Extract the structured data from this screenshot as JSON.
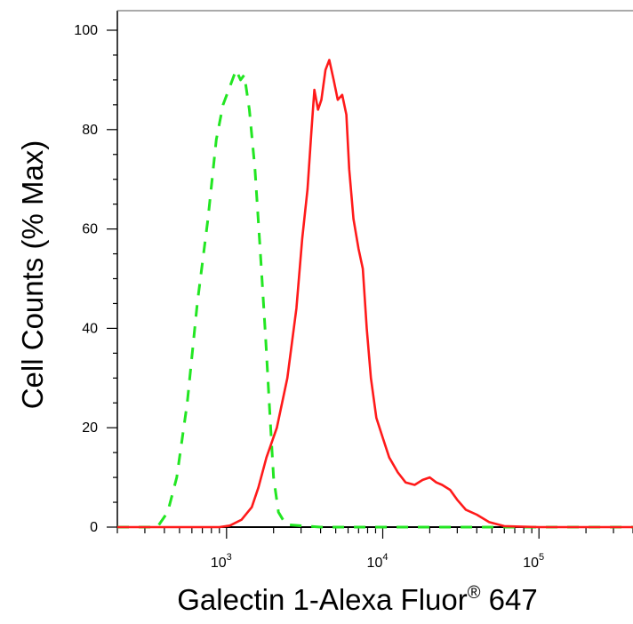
{
  "chart_data": {
    "type": "line",
    "title": "",
    "xlabel": "Galectin 1-Alexa Fluor",
    "xlabel_superscript": "®",
    "xlabel_suffix": " 647",
    "ylabel": "Cell Counts (% Max)",
    "xscale": "log",
    "xlim": [
      200,
      400000
    ],
    "ylim": [
      0,
      100
    ],
    "grid": false,
    "legend": "none",
    "yticks": [
      0,
      20,
      40,
      60,
      80,
      100
    ],
    "xticks_major": [
      {
        "base": "10",
        "exp": "3",
        "value": 1000
      },
      {
        "base": "10",
        "exp": "4",
        "value": 10000
      },
      {
        "base": "10",
        "exp": "5",
        "value": 100000
      }
    ],
    "series": [
      {
        "style": "dashed",
        "color": "#22e622",
        "points": [
          [
            200,
            0
          ],
          [
            360,
            0
          ],
          [
            420,
            3
          ],
          [
            480,
            10
          ],
          [
            560,
            25
          ],
          [
            650,
            45
          ],
          [
            760,
            62
          ],
          [
            860,
            78
          ],
          [
            950,
            85
          ],
          [
            1060,
            89
          ],
          [
            1150,
            92
          ],
          [
            1230,
            90
          ],
          [
            1300,
            91
          ],
          [
            1400,
            84
          ],
          [
            1520,
            72
          ],
          [
            1640,
            56
          ],
          [
            1780,
            38
          ],
          [
            1900,
            22
          ],
          [
            2000,
            10
          ],
          [
            2150,
            3
          ],
          [
            2400,
            0.5
          ],
          [
            4000,
            0
          ],
          [
            400000,
            0
          ]
        ]
      },
      {
        "style": "solid",
        "color": "#ff1a1a",
        "points": [
          [
            200,
            0
          ],
          [
            900,
            0
          ],
          [
            1050,
            0.3
          ],
          [
            1250,
            1.5
          ],
          [
            1450,
            4
          ],
          [
            1600,
            8
          ],
          [
            1800,
            14
          ],
          [
            2100,
            20
          ],
          [
            2450,
            30
          ],
          [
            2800,
            44
          ],
          [
            3050,
            58
          ],
          [
            3300,
            68
          ],
          [
            3500,
            80
          ],
          [
            3650,
            88
          ],
          [
            3850,
            84
          ],
          [
            4050,
            86
          ],
          [
            4300,
            92
          ],
          [
            4550,
            94
          ],
          [
            4850,
            90
          ],
          [
            5150,
            86
          ],
          [
            5500,
            87
          ],
          [
            5850,
            83
          ],
          [
            6100,
            72
          ],
          [
            6500,
            62
          ],
          [
            7000,
            56
          ],
          [
            7450,
            52
          ],
          [
            7900,
            40
          ],
          [
            8400,
            30
          ],
          [
            9100,
            22
          ],
          [
            10000,
            18
          ],
          [
            11000,
            14
          ],
          [
            12500,
            11
          ],
          [
            14000,
            9
          ],
          [
            16000,
            8.5
          ],
          [
            18000,
            9.5
          ],
          [
            20000,
            10
          ],
          [
            22000,
            9
          ],
          [
            24000,
            8.5
          ],
          [
            27000,
            7.5
          ],
          [
            30000,
            5.5
          ],
          [
            34000,
            3.5
          ],
          [
            40000,
            2.5
          ],
          [
            48000,
            1
          ],
          [
            60000,
            0.2
          ],
          [
            100000,
            0
          ],
          [
            400000,
            0
          ]
        ]
      }
    ]
  }
}
